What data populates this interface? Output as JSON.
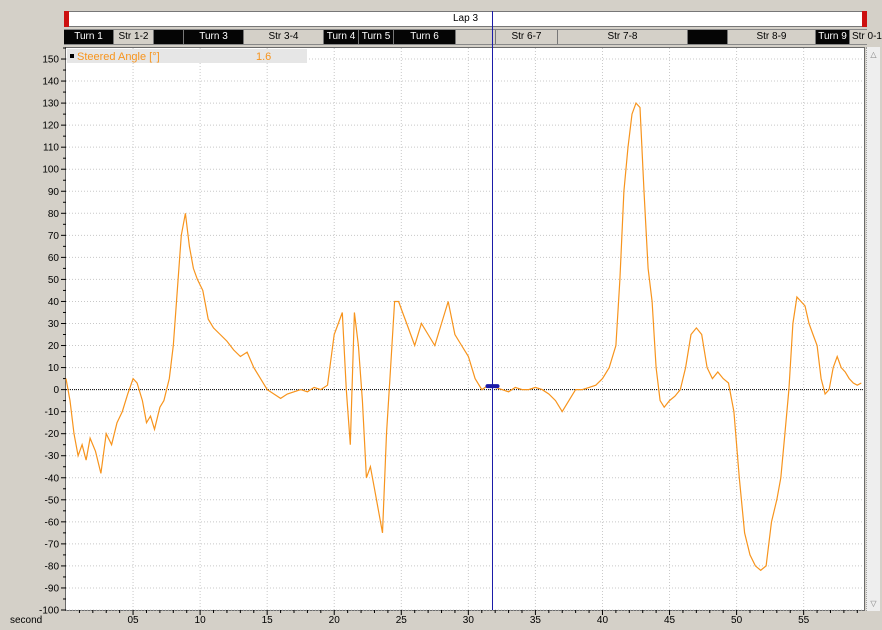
{
  "lap": {
    "label": "Lap 3"
  },
  "segments": [
    {
      "label": "Turn 1",
      "kind": "turn"
    },
    {
      "label": "Str 1-2",
      "kind": "straight"
    },
    {
      "label": "",
      "kind": "turn"
    },
    {
      "label": "Turn 3",
      "kind": "turn"
    },
    {
      "label": "Str 3-4",
      "kind": "straight"
    },
    {
      "label": "Turn 4",
      "kind": "turn"
    },
    {
      "label": "Turn 5",
      "kind": "turn"
    },
    {
      "label": "Turn 6",
      "kind": "turn"
    },
    {
      "label": "",
      "kind": "straight"
    },
    {
      "label": "Str 6-7",
      "kind": "straight"
    },
    {
      "label": "Str 7-8",
      "kind": "straight"
    },
    {
      "label": "",
      "kind": "turn"
    },
    {
      "label": "Str 8-9",
      "kind": "straight"
    },
    {
      "label": "Turn 9",
      "kind": "turn"
    },
    {
      "label": "Str 0-1",
      "kind": "straight"
    }
  ],
  "cursor": {
    "x": 31.8
  },
  "scrollbar": {
    "up_icon": "triangle-up-icon",
    "down_icon": "triangle-down-icon"
  },
  "chart_data": {
    "type": "line",
    "title": "",
    "xlabel": "second",
    "ylabel": "",
    "xlim": [
      0,
      59.5
    ],
    "ylim": [
      -100,
      155
    ],
    "x_ticks": [
      5,
      10,
      15,
      20,
      25,
      30,
      35,
      40,
      45,
      50,
      55
    ],
    "x_tick_labels": [
      "05",
      "10",
      "15",
      "20",
      "25",
      "30",
      "35",
      "40",
      "45",
      "50",
      "55"
    ],
    "y_ticks": [
      -100,
      -90,
      -80,
      -70,
      -60,
      -50,
      -40,
      -30,
      -20,
      -10,
      0,
      10,
      20,
      30,
      40,
      50,
      60,
      70,
      80,
      90,
      100,
      110,
      120,
      130,
      140,
      150
    ],
    "grid": true,
    "legend": "top-left",
    "colors": {
      "series": "#f7941d",
      "cursor": "#1a1aa8",
      "zero_line": "#000000"
    },
    "series": [
      {
        "name": "Steered Angle [°]",
        "cursor_value": "1.6",
        "x": [
          0,
          0.3,
          0.6,
          0.9,
          1.2,
          1.5,
          1.8,
          2.2,
          2.6,
          3.0,
          3.4,
          3.8,
          4.2,
          4.6,
          5.0,
          5.3,
          5.7,
          6.0,
          6.3,
          6.6,
          7.0,
          7.3,
          7.7,
          8.0,
          8.3,
          8.6,
          8.9,
          9.2,
          9.5,
          9.8,
          10.2,
          10.6,
          11.0,
          11.5,
          12.0,
          12.5,
          13.0,
          13.5,
          14.0,
          14.5,
          15.0,
          15.5,
          16.0,
          16.5,
          17.0,
          17.5,
          18.0,
          18.5,
          19.0,
          19.5,
          20.0,
          20.3,
          20.6,
          20.9,
          21.2,
          21.5,
          21.8,
          22.1,
          22.4,
          22.7,
          23.0,
          23.3,
          23.6,
          23.9,
          24.2,
          24.5,
          24.8,
          25.1,
          25.4,
          25.7,
          26.0,
          26.5,
          27.0,
          27.5,
          28.0,
          28.5,
          29.0,
          29.5,
          30.0,
          30.5,
          31.0,
          31.5,
          32.0,
          32.5,
          33.0,
          33.5,
          34.0,
          34.5,
          35.0,
          35.5,
          36.0,
          36.5,
          37.0,
          37.5,
          38.0,
          38.5,
          39.0,
          39.5,
          40.0,
          40.5,
          41.0,
          41.3,
          41.6,
          41.9,
          42.2,
          42.5,
          42.8,
          43.1,
          43.4,
          43.7,
          44.0,
          44.3,
          44.6,
          45.0,
          45.4,
          45.8,
          46.2,
          46.6,
          47.0,
          47.4,
          47.8,
          48.2,
          48.6,
          49.0,
          49.4,
          49.8,
          50.2,
          50.6,
          51.0,
          51.4,
          51.8,
          52.2,
          52.6,
          53.0,
          53.3,
          53.6,
          53.9,
          54.2,
          54.5,
          54.8,
          55.1,
          55.4,
          55.7,
          56.0,
          56.3,
          56.6,
          56.9,
          57.2,
          57.5,
          57.8,
          58.1,
          58.4,
          58.7,
          59.0,
          59.3
        ],
        "y": [
          5,
          -5,
          -20,
          -30,
          -25,
          -32,
          -22,
          -28,
          -38,
          -20,
          -25,
          -15,
          -10,
          -2,
          5,
          3,
          -5,
          -15,
          -12,
          -18,
          -8,
          -5,
          5,
          20,
          45,
          70,
          80,
          65,
          55,
          50,
          45,
          32,
          28,
          25,
          22,
          18,
          15,
          17,
          10,
          5,
          0,
          -2,
          -4,
          -2,
          -1,
          0,
          -1,
          1,
          0,
          2,
          25,
          30,
          35,
          0,
          -25,
          35,
          20,
          -5,
          -40,
          -35,
          -45,
          -55,
          -65,
          -20,
          10,
          40,
          40,
          35,
          30,
          25,
          20,
          30,
          25,
          20,
          30,
          40,
          25,
          20,
          15,
          5,
          0,
          2,
          1,
          0,
          -1,
          1,
          0,
          0,
          1,
          0,
          -2,
          -5,
          -10,
          -5,
          0,
          0,
          1,
          2,
          5,
          10,
          20,
          50,
          90,
          110,
          125,
          130,
          128,
          90,
          55,
          40,
          10,
          -5,
          -8,
          -5,
          -3,
          0,
          10,
          25,
          28,
          25,
          10,
          5,
          8,
          5,
          3,
          -10,
          -40,
          -65,
          -75,
          -80,
          -82,
          -80,
          -60,
          -50,
          -40,
          -20,
          0,
          30,
          42,
          40,
          38,
          30,
          25,
          20,
          5,
          -2,
          0,
          10,
          15,
          10,
          8,
          5,
          3,
          2,
          3
        ]
      }
    ]
  }
}
